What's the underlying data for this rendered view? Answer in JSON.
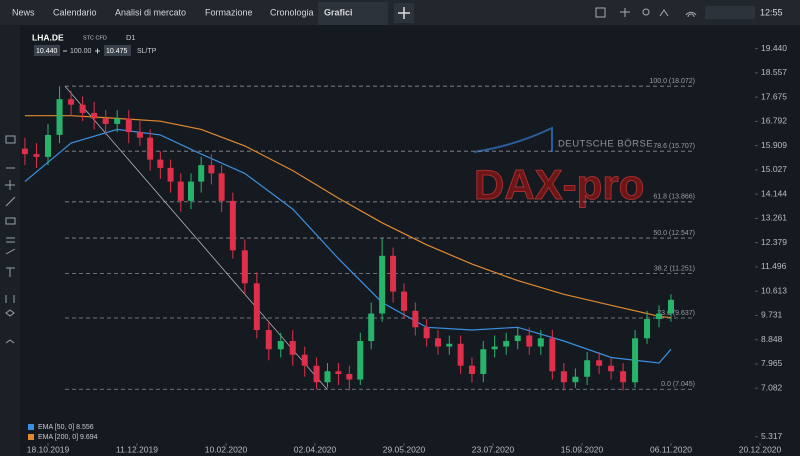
{
  "header": {
    "tabs": [
      "News",
      "Calendario",
      "Analisi di mercato",
      "Formazione",
      "Cronologia",
      "Grafici"
    ],
    "time": "12:55",
    "symbol": "LHA.DE",
    "instrument": "STC CFD",
    "timeframe": "D1",
    "bid": "10.440",
    "volume": "100.00",
    "ask": "10.475",
    "sltp": "SL/TP"
  },
  "watermark": {
    "brand": "DEUTSCHE BÖRSE",
    "product": "DAX-pro"
  },
  "chart_data": {
    "type": "candlestick",
    "up_color": "#27b36a",
    "down_color": "#e02f4a",
    "x": [
      "2019-10-04",
      "2019-10-11",
      "2019-10-18",
      "2019-10-25",
      "2019-11-01",
      "2019-11-08",
      "2019-11-15",
      "2019-11-22",
      "2019-11-29",
      "2019-12-06",
      "2019-12-13",
      "2019-12-20",
      "2019-12-27",
      "2020-01-03",
      "2020-01-10",
      "2020-01-17",
      "2020-01-24",
      "2020-01-31",
      "2020-02-07",
      "2020-02-14",
      "2020-02-21",
      "2020-02-28",
      "2020-03-06",
      "2020-03-13",
      "2020-03-20",
      "2020-03-27",
      "2020-04-03",
      "2020-04-10",
      "2020-04-17",
      "2020-04-24",
      "2020-05-01",
      "2020-05-08",
      "2020-05-15",
      "2020-05-22",
      "2020-05-29",
      "2020-06-05",
      "2020-06-12",
      "2020-06-19",
      "2020-06-26",
      "2020-07-03",
      "2020-07-10",
      "2020-07-17",
      "2020-07-24",
      "2020-07-31",
      "2020-08-07",
      "2020-08-14",
      "2020-08-21",
      "2020-08-28",
      "2020-09-04",
      "2020-09-11",
      "2020-09-18",
      "2020-09-25",
      "2020-10-02",
      "2020-10-09",
      "2020-10-16",
      "2020-10-23",
      "2020-10-30",
      "2020-11-06"
    ],
    "open": [
      15.8,
      15.6,
      15.5,
      16.3,
      17.6,
      17.4,
      17.1,
      16.9,
      16.7,
      16.9,
      16.4,
      16.2,
      15.4,
      15.1,
      14.6,
      13.9,
      14.6,
      15.2,
      14.9,
      13.9,
      12.1,
      10.9,
      9.2,
      8.5,
      8.8,
      8.3,
      7.9,
      7.3,
      7.7,
      7.6,
      7.4,
      8.8,
      9.8,
      11.9,
      10.6,
      9.9,
      9.3,
      8.9,
      8.6,
      8.7,
      7.9,
      7.6,
      8.5,
      8.6,
      8.8,
      9.0,
      8.6,
      8.9,
      7.7,
      7.3,
      7.5,
      8.1,
      7.9,
      7.7,
      7.3,
      8.9,
      9.6,
      9.8
    ],
    "high": [
      16.2,
      16.0,
      16.7,
      18.07,
      17.9,
      17.7,
      17.5,
      17.2,
      17.2,
      17.2,
      16.8,
      16.5,
      15.7,
      15.4,
      14.9,
      14.9,
      15.5,
      15.6,
      15.2,
      14.2,
      12.5,
      11.3,
      9.5,
      9.1,
      9.2,
      8.6,
      8.2,
      8.0,
      8.0,
      7.9,
      9.1,
      10.2,
      12.55,
      12.2,
      10.9,
      10.2,
      9.6,
      9.2,
      9.0,
      9.0,
      8.2,
      8.8,
      9.0,
      9.1,
      9.3,
      9.3,
      9.2,
      9.2,
      8.0,
      7.8,
      8.4,
      8.4,
      8.2,
      8.0,
      9.2,
      9.9,
      10.1,
      10.5
    ],
    "low": [
      15.2,
      15.1,
      15.2,
      16.0,
      17.0,
      16.8,
      16.5,
      16.3,
      16.4,
      16.0,
      15.9,
      15.0,
      14.7,
      14.2,
      13.5,
      13.6,
      14.2,
      14.5,
      13.5,
      11.8,
      10.5,
      8.9,
      8.1,
      8.2,
      7.9,
      7.5,
      7.05,
      7.1,
      7.2,
      7.0,
      7.2,
      8.5,
      9.5,
      10.2,
      9.6,
      9.0,
      8.6,
      8.3,
      8.3,
      7.6,
      7.3,
      7.3,
      8.2,
      8.3,
      8.5,
      8.3,
      8.3,
      7.4,
      7.0,
      7.1,
      7.2,
      7.6,
      7.4,
      7.0,
      7.1,
      8.7,
      9.3,
      9.5
    ],
    "close": [
      15.6,
      15.5,
      16.3,
      17.6,
      17.4,
      17.1,
      16.9,
      16.7,
      16.9,
      16.4,
      16.2,
      15.4,
      15.1,
      14.6,
      13.9,
      14.6,
      15.2,
      14.9,
      13.9,
      12.1,
      10.9,
      9.2,
      8.5,
      8.8,
      8.3,
      7.9,
      7.3,
      7.7,
      7.6,
      7.4,
      8.8,
      9.8,
      11.9,
      10.6,
      9.9,
      9.3,
      8.9,
      8.6,
      8.7,
      7.9,
      7.6,
      8.5,
      8.6,
      8.8,
      9.0,
      8.6,
      8.9,
      7.7,
      7.3,
      7.5,
      8.1,
      7.9,
      7.7,
      7.3,
      8.9,
      9.6,
      9.8,
      10.3
    ],
    "series": [
      {
        "name": "EMA [50, 0]",
        "color": "#3b8fe0",
        "last": 8.556,
        "x": [
          "2019-10-04",
          "2019-11-01",
          "2019-11-29",
          "2019-12-27",
          "2020-01-24",
          "2020-02-21",
          "2020-03-20",
          "2020-04-17",
          "2020-05-15",
          "2020-06-12",
          "2020-07-10",
          "2020-08-07",
          "2020-09-04",
          "2020-10-02",
          "2020-10-30",
          "2020-11-06"
        ],
        "values": [
          14.6,
          16.0,
          16.5,
          16.3,
          15.6,
          14.9,
          13.6,
          11.8,
          10.2,
          9.3,
          9.2,
          9.3,
          8.8,
          8.2,
          8.0,
          8.5
        ]
      },
      {
        "name": "EMA [200, 0]",
        "color": "#e0882e",
        "last": 9.694,
        "x": [
          "2019-10-04",
          "2019-11-01",
          "2019-11-29",
          "2019-12-27",
          "2020-01-24",
          "2020-02-21",
          "2020-03-20",
          "2020-04-17",
          "2020-05-15",
          "2020-06-12",
          "2020-07-10",
          "2020-08-07",
          "2020-09-04",
          "2020-10-02",
          "2020-10-30",
          "2020-11-06"
        ],
        "values": [
          17.0,
          17.0,
          16.9,
          16.8,
          16.5,
          15.9,
          15.0,
          14.0,
          13.1,
          12.3,
          11.6,
          11.0,
          10.5,
          10.1,
          9.7,
          9.65
        ]
      }
    ],
    "fib_levels": [
      {
        "value": 18.072,
        "label": "100.0 (18.072)"
      },
      {
        "value": 15.707,
        "label": "78.6 (15.707)"
      },
      {
        "value": 13.866,
        "label": "61.8 (13.866)"
      },
      {
        "value": 12.547,
        "label": "50.0 (12.547)"
      },
      {
        "value": 11.251,
        "label": "38.2 (11.251)"
      },
      {
        "value": 9.637,
        "label": "23.6 (9.637)"
      },
      {
        "value": 7.045,
        "label": "0.0 (7.045)"
      }
    ],
    "ylim": [
      4.98,
      20.19
    ],
    "yticks": [
      {
        "value": 19.44,
        "label": "19.440"
      },
      18.557,
      17.675,
      16.792,
      15.909,
      15.027,
      14.144,
      13.261,
      12.379,
      11.496,
      10.613,
      9.731,
      8.848,
      7.965,
      7.082,
      5.317
    ],
    "xticks": [
      {
        "value": "2019-10-18",
        "label": "18.10.2019"
      },
      {
        "value": "2019-12-11",
        "label": "11.12.2019"
      },
      {
        "value": "2020-02-10",
        "label": "10.02.2020"
      },
      {
        "value": "2020-04-02",
        "label": "02.04.2020"
      },
      {
        "value": "2020-05-29",
        "label": "29.05.2020"
      },
      {
        "value": "2020-07-23",
        "label": "23.07.2020"
      },
      {
        "value": "2020-09-15",
        "label": "15.09.2020"
      },
      {
        "value": "2020-11-06",
        "label": "06.11.2020"
      },
      {
        "value": "2020-12-20",
        "label": "20.12.2020"
      }
    ],
    "legend": "bottom-left"
  }
}
